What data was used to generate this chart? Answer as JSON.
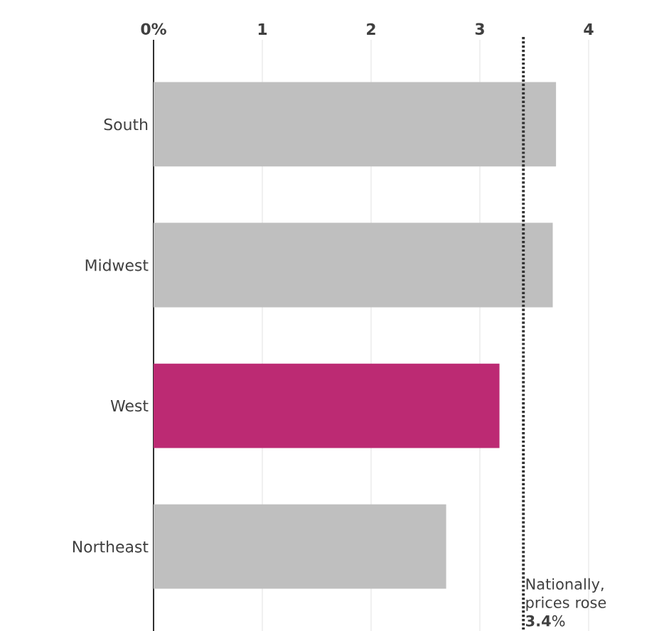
{
  "chart_data": {
    "type": "bar",
    "orientation": "horizontal",
    "categories": [
      "South",
      "Midwest",
      "West",
      "Northeast"
    ],
    "values": [
      3.7,
      3.67,
      3.18,
      2.69
    ],
    "colors": [
      "#bfbfbf",
      "#bfbfbf",
      "#bc2a73",
      "#bfbfbf"
    ],
    "xlim": [
      0,
      4
    ],
    "xticks": [
      {
        "value": 0,
        "label": "0%"
      },
      1,
      2,
      3,
      4
    ],
    "grid": "x",
    "ref_lines": [
      {
        "axis": "x",
        "value": 3.4,
        "label": "Nationally, prices rose **3.4**%",
        "line_style": "dotted",
        "color": "#333333"
      }
    ]
  }
}
